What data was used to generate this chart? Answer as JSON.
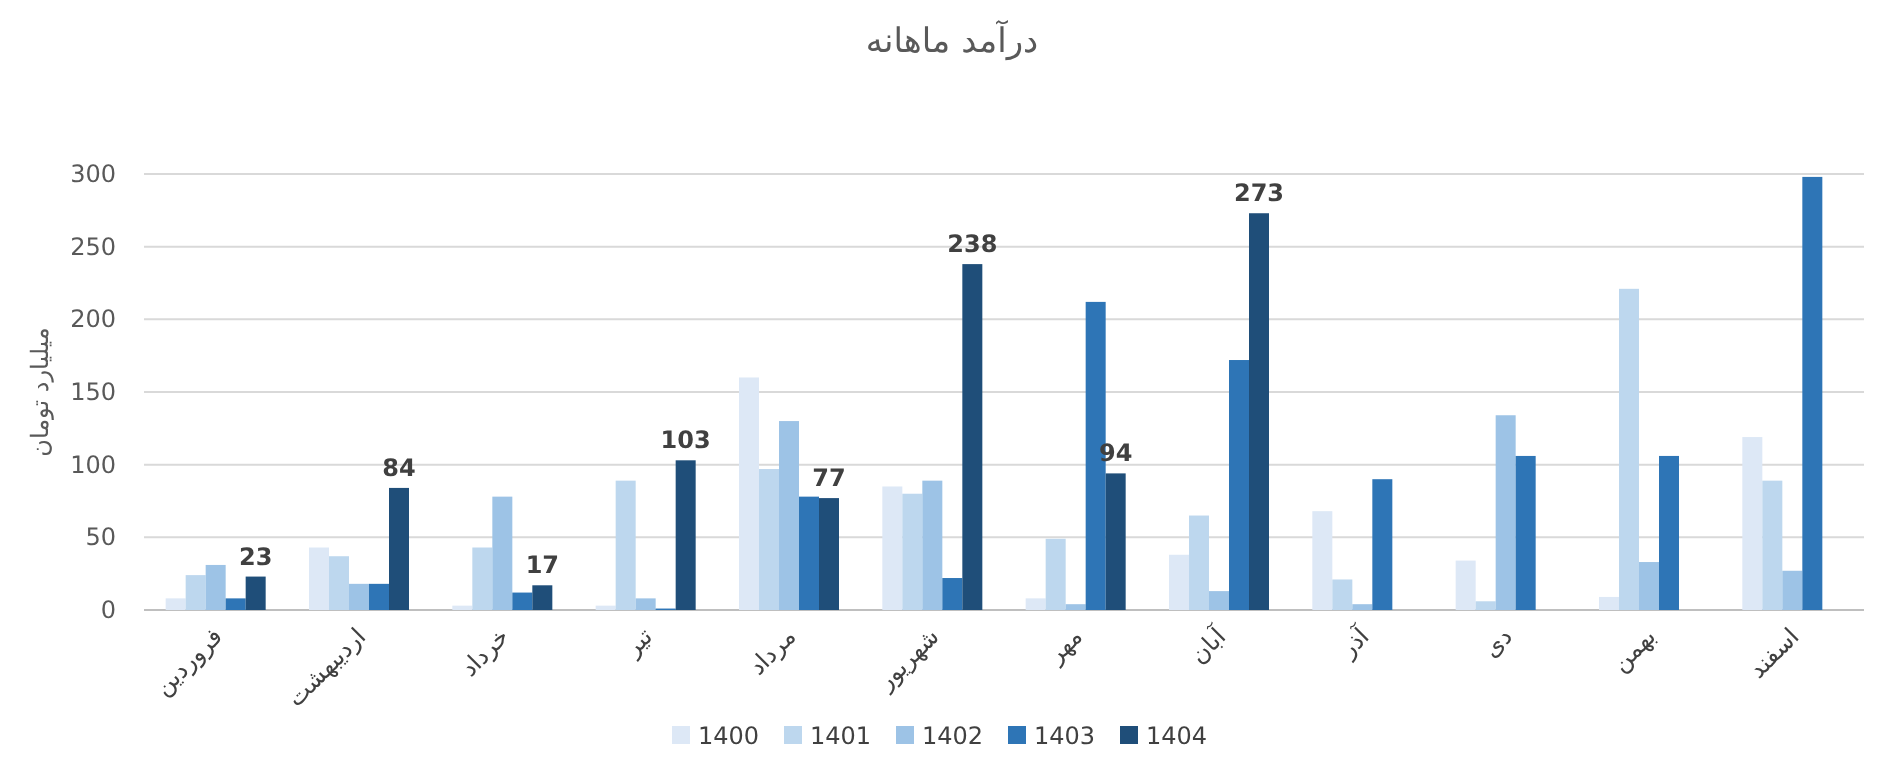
{
  "chart_data": {
    "type": "bar",
    "title": "درآمد ماهانه",
    "ylabel": "میلیارد تومان",
    "categories": [
      "فروردین",
      "اردیبهشت",
      "خرداد",
      "تیر",
      "مرداد",
      "شهریور",
      "مهر",
      "آبان",
      "آذر",
      "دی",
      "بهمن",
      "اسفند"
    ],
    "series": [
      {
        "name": "1400",
        "color": "#dde8f6",
        "values": [
          8,
          43,
          3,
          3,
          160,
          85,
          8,
          38,
          68,
          34,
          9,
          119
        ]
      },
      {
        "name": "1401",
        "color": "#bdd7ee",
        "values": [
          24,
          37,
          43,
          89,
          97,
          80,
          49,
          65,
          21,
          6,
          221,
          89
        ]
      },
      {
        "name": "1402",
        "color": "#9dc3e6",
        "values": [
          31,
          18,
          78,
          8,
          130,
          89,
          4,
          13,
          4,
          134,
          33,
          27
        ]
      },
      {
        "name": "1403",
        "color": "#2e75b6",
        "values": [
          8,
          18,
          12,
          1,
          78,
          22,
          212,
          172,
          90,
          106,
          106,
          298
        ]
      },
      {
        "name": "1404",
        "color": "#1f4e79",
        "values": [
          23,
          84,
          17,
          103,
          77,
          238,
          94,
          273,
          null,
          null,
          null,
          null
        ],
        "value_labels": [
          "23",
          "84",
          "17",
          "103",
          "77",
          "238",
          "94",
          "273",
          null,
          null,
          null,
          null
        ]
      }
    ],
    "ylim": [
      0,
      300
    ],
    "yticks": [
      0,
      50,
      100,
      150,
      200,
      250,
      300
    ],
    "grid": "y",
    "legend": "bottom"
  }
}
